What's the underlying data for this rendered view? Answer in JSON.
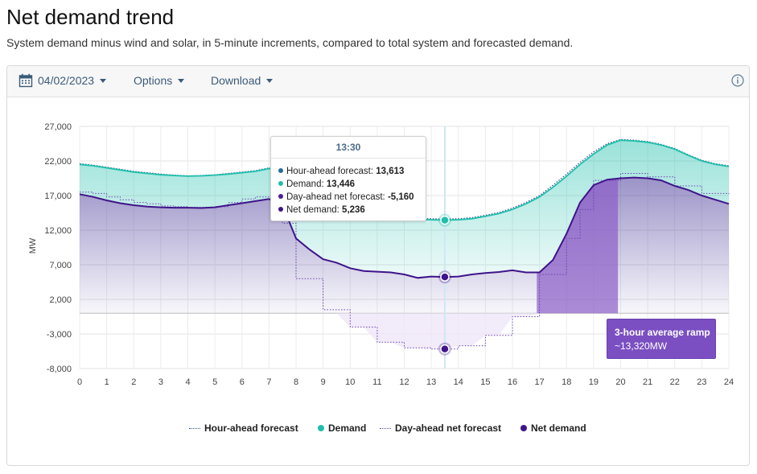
{
  "page": {
    "title": "Net demand trend",
    "subtitle": "System demand minus wind and solar, in 5-minute increments, compared to total system and forecasted demand."
  },
  "toolbar": {
    "date_label": "04/02/2023",
    "options_label": "Options",
    "download_label": "Download"
  },
  "tooltip": {
    "time": "13:30",
    "rows": [
      {
        "label": "Hour-ahead forecast:",
        "value": "13,613",
        "color": "#2b6a96"
      },
      {
        "label": "Demand:",
        "value": "13,446",
        "color": "#1fbfac"
      },
      {
        "label": "Day-ahead net forecast:",
        "value": "-5,160",
        "color": "#4b1f94"
      },
      {
        "label": "Net demand:",
        "value": "5,236",
        "color": "#3f148a"
      }
    ]
  },
  "ramp": {
    "title": "3-hour average ramp",
    "value": "~13,320MW"
  },
  "legend": [
    {
      "label": "Hour-ahead forecast",
      "style": "dotted",
      "color": "#2b4f8a"
    },
    {
      "label": "Demand",
      "style": "dot",
      "color": "#1fbfac"
    },
    {
      "label": "Day-ahead net forecast",
      "style": "dotted",
      "color": "#6b43b0"
    },
    {
      "label": "Net demand",
      "style": "dot",
      "color": "#3f148a"
    }
  ],
  "colors": {
    "demand": "#1fbfac",
    "net_demand": "#3f148a",
    "hour_ahead": "#2b4f8a",
    "day_ahead": "#6b43b0",
    "ramp": "#7b4fc1"
  },
  "chart_data": {
    "type": "line",
    "title": "Net demand trend",
    "xlabel": "",
    "ylabel": "MW",
    "xlim": [
      0,
      24
    ],
    "ylim": [
      -8000,
      27000
    ],
    "x_ticks": [
      0,
      1,
      2,
      3,
      4,
      5,
      6,
      7,
      8,
      9,
      10,
      11,
      12,
      13,
      14,
      15,
      16,
      17,
      18,
      19,
      20,
      21,
      22,
      23,
      24
    ],
    "y_ticks": [
      27000,
      22000,
      17000,
      12000,
      7000,
      2000,
      -3000,
      -8000
    ],
    "y_tick_labels": [
      "27,000",
      "22,000",
      "17,000",
      "12,000",
      "7,000",
      "2,000",
      "-3,000",
      "-8,000"
    ],
    "grid": true,
    "crosshair_x": 13.5,
    "ramp_window": [
      16.9,
      19.9
    ],
    "series": [
      {
        "name": "Demand",
        "x": [
          0,
          0.5,
          1,
          1.5,
          2,
          2.5,
          3,
          3.5,
          4,
          4.5,
          5,
          5.5,
          6,
          6.5,
          7,
          7.5,
          8,
          8.5,
          9,
          9.5,
          10,
          10.5,
          11,
          11.5,
          12,
          12.5,
          13,
          13.5,
          14,
          14.5,
          15,
          15.5,
          16,
          16.5,
          17,
          17.5,
          18,
          18.5,
          19,
          19.5,
          20,
          20.5,
          21,
          21.5,
          22,
          22.5,
          23,
          23.5,
          24
        ],
        "values": [
          21500,
          21300,
          21000,
          20700,
          20400,
          20200,
          20000,
          19900,
          19800,
          19850,
          19950,
          20100,
          20300,
          20500,
          20900,
          21000,
          19000,
          17200,
          16100,
          15300,
          14700,
          14300,
          14000,
          13800,
          13650,
          13550,
          13500,
          13446,
          13500,
          13650,
          14000,
          14400,
          15000,
          15800,
          16800,
          18200,
          19800,
          21500,
          23000,
          24300,
          25000,
          24900,
          24700,
          24300,
          23700,
          22800,
          22000,
          21500,
          21200
        ]
      },
      {
        "name": "Hour-ahead forecast",
        "x": [
          0,
          0.5,
          1,
          1.5,
          2,
          2.5,
          3,
          3.5,
          4,
          4.5,
          5,
          5.5,
          6,
          6.5,
          7,
          7.5,
          8,
          8.5,
          9,
          9.5,
          10,
          10.5,
          11,
          11.5,
          12,
          12.5,
          13,
          13.5,
          14,
          14.5,
          15,
          15.5,
          16,
          16.5,
          17,
          17.5,
          18,
          18.5,
          19,
          19.5,
          20,
          20.5,
          21,
          21.5,
          22,
          22.5,
          23,
          23.5,
          24
        ],
        "values": [
          21600,
          21400,
          21100,
          20800,
          20500,
          20300,
          20100,
          19950,
          19850,
          19900,
          20000,
          20200,
          20400,
          20600,
          21000,
          21100,
          19200,
          17400,
          16300,
          15500,
          14900,
          14500,
          14200,
          13950,
          13800,
          13700,
          13650,
          13613,
          13650,
          13800,
          14150,
          14550,
          15200,
          16000,
          17000,
          18500,
          20100,
          21800,
          23300,
          24500,
          25100,
          25000,
          24800,
          24400,
          23800,
          22900,
          22100,
          21600,
          21300
        ]
      },
      {
        "name": "Net demand",
        "x": [
          0,
          0.5,
          1,
          1.5,
          2,
          2.5,
          3,
          3.5,
          4,
          4.5,
          5,
          5.5,
          6,
          6.5,
          7,
          7.5,
          8,
          8.5,
          9,
          9.5,
          10,
          10.5,
          11,
          11.5,
          12,
          12.5,
          13,
          13.5,
          14,
          14.5,
          15,
          15.5,
          16,
          16.5,
          17,
          17.5,
          18,
          18.5,
          19,
          19.5,
          20,
          20.5,
          21,
          21.5,
          22,
          22.5,
          23,
          23.5,
          24
        ],
        "values": [
          17200,
          16800,
          16300,
          15900,
          15600,
          15400,
          15300,
          15250,
          15250,
          15200,
          15300,
          15600,
          15900,
          16200,
          16500,
          15600,
          10800,
          9200,
          7800,
          7300,
          6500,
          6100,
          6000,
          5900,
          5600,
          5100,
          5300,
          5236,
          5300,
          5600,
          5800,
          5950,
          6200,
          5900,
          5900,
          7700,
          11500,
          16000,
          18500,
          19300,
          19500,
          19600,
          19500,
          19200,
          18400,
          17800,
          17000,
          16400,
          15800
        ]
      },
      {
        "name": "Day-ahead net forecast",
        "x": [
          0,
          0.5,
          1,
          1.5,
          2,
          2.5,
          3,
          3.5,
          4,
          4.5,
          5,
          5.5,
          6,
          6.5,
          7,
          7.5,
          8,
          8.5,
          9,
          9.5,
          10,
          10.5,
          11,
          11.5,
          12,
          12.5,
          13,
          13.5,
          14,
          14.5,
          15,
          15.5,
          16,
          16.5,
          17,
          17.5,
          18,
          18.5,
          19,
          19.5,
          20,
          20.5,
          21,
          21.5,
          22,
          22.5,
          23,
          23.5,
          24
        ],
        "values": [
          17500,
          17300,
          16800,
          16400,
          16000,
          15800,
          15500,
          15400,
          15300,
          15300,
          15400,
          16000,
          16500,
          16800,
          16300,
          13000,
          5000,
          5000,
          500,
          500,
          -2000,
          -2000,
          -4200,
          -4200,
          -5000,
          -5000,
          -5160,
          -5160,
          -4700,
          -4700,
          -3200,
          -3200,
          -500,
          -500,
          5600,
          5600,
          10800,
          15000,
          19200,
          19200,
          20200,
          20200,
          19700,
          19700,
          18400,
          18400,
          17300,
          17300,
          17200
        ]
      }
    ]
  }
}
